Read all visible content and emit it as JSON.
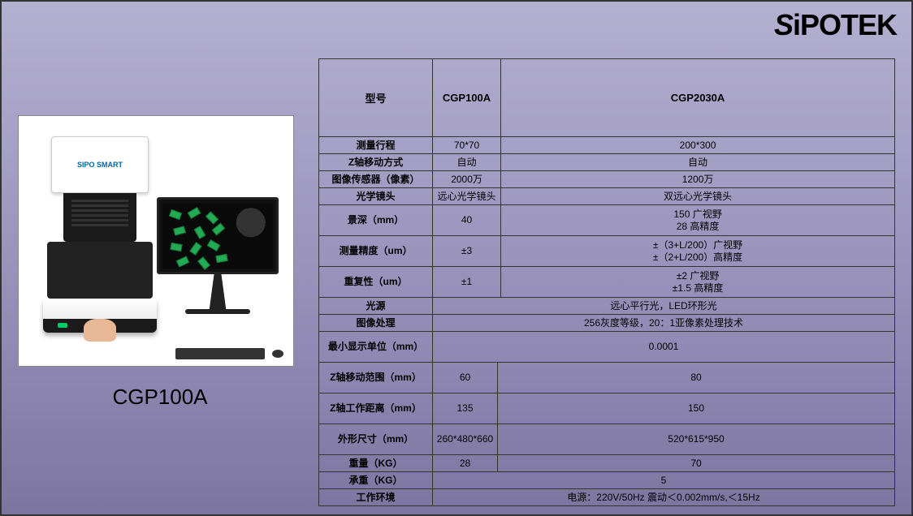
{
  "brand_logo": "SiPOTEK",
  "product": {
    "name": "CGP100A",
    "sub_brand": "SIPO SMART"
  },
  "table": {
    "header": [
      "型号",
      "CGP100A",
      "CGP2030A"
    ],
    "rows": [
      {
        "label": "测量行程",
        "a": "70*70",
        "b": "200*300"
      },
      {
        "label": "Z轴移动方式",
        "a": "自动",
        "b": "自动"
      },
      {
        "label": "图像传感器（像素）",
        "a": "2000万",
        "b": "1200万"
      },
      {
        "label": "光学镜头",
        "a": "远心光学镜头",
        "b": "双远心光学镜头"
      },
      {
        "label": "景深（mm）",
        "a": "40",
        "b": "150 广视野\n28 高精度",
        "tall": true
      },
      {
        "label": "测量精度（um）",
        "a": "±3",
        "b": "±（3+L/200）广视野\n±（2+L/200）高精度",
        "tall": true
      },
      {
        "label": "重复性（um）",
        "a": "±1",
        "b": "±2 广视野\n±1.5 高精度",
        "tall": true
      },
      {
        "label": "光源",
        "merged": "远心平行光，LED环形光"
      },
      {
        "label": "图像处理",
        "merged": "256灰度等级，20：1亚像素处理技术"
      },
      {
        "label": "最小显示单位（mm）",
        "merged": "0.0001",
        "tall": true
      },
      {
        "label": "Z轴移动范围（mm）",
        "a": "60",
        "b": "80",
        "tall": true,
        "narrow": true
      },
      {
        "label": "Z轴工作距离（mm）",
        "a": "135",
        "b": "150",
        "tall": true,
        "narrow": true
      },
      {
        "label": "外形尺寸（mm）",
        "a": "260*480*660",
        "b": "520*615*950",
        "tall": true,
        "narrow": true
      },
      {
        "label": "重量（KG）",
        "a": "28",
        "b": "70",
        "narrow": true
      },
      {
        "label": "承重（KG）",
        "merged": "5"
      },
      {
        "label": "工作环境",
        "merged": "电源：220V/50Hz  震动＜0.002mm/s,＜15Hz"
      }
    ]
  },
  "style": {
    "header_fontsize": 13,
    "body_fontsize": 12,
    "border_color": "#333333"
  }
}
